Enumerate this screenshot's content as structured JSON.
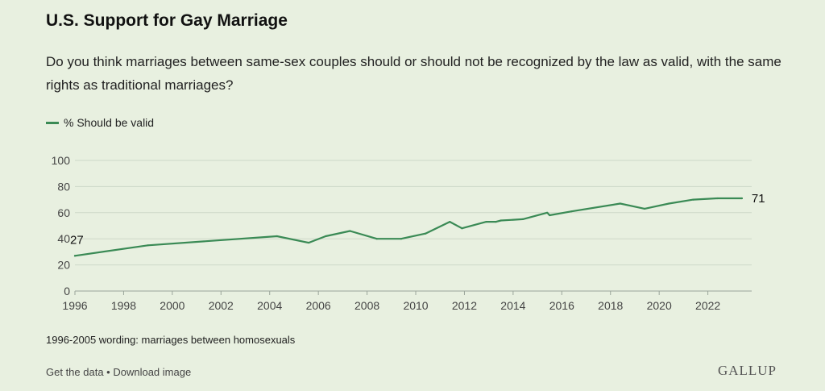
{
  "header": {
    "title": "U.S. Support for Gay Marriage",
    "subtitle": "Do you think marriages between same-sex couples should or should not be recognized by the law as valid, with the same rights as traditional marriages?"
  },
  "legend": {
    "label": "% Should be valid",
    "color": "#3a8a55"
  },
  "note": "1996-2005 wording: marriages between homosexuals",
  "footer": {
    "get_data": "Get the data",
    "separator": " • ",
    "download": "Download image",
    "brand": "GALLUP"
  },
  "chart_data": {
    "type": "line",
    "title": "U.S. Support for Gay Marriage",
    "xlabel": "",
    "ylabel": "",
    "xlim": [
      1996,
      2023.8
    ],
    "ylim": [
      0,
      100
    ],
    "yticks": [
      0,
      20,
      40,
      60,
      80,
      100
    ],
    "xticks": [
      1996,
      1998,
      2000,
      2002,
      2004,
      2006,
      2008,
      2010,
      2012,
      2014,
      2016,
      2018,
      2020,
      2022
    ],
    "grid": true,
    "legend_position": "top-left",
    "series": [
      {
        "name": "% Should be valid",
        "color": "#3a8a55",
        "x": [
          1996,
          1999,
          2004.3,
          2005.6,
          2006.3,
          2007.3,
          2008.4,
          2009.4,
          2010.4,
          2011.4,
          2011.9,
          2012.9,
          2013.3,
          2013.5,
          2014.4,
          2015.4,
          2015.5,
          2016.4,
          2018.4,
          2019.4,
          2020.4,
          2021.4,
          2022.4,
          2023.4
        ],
        "y": [
          27,
          35,
          42,
          37,
          42,
          46,
          40,
          40,
          44,
          53,
          48,
          53,
          53,
          54,
          55,
          60,
          58,
          61,
          67,
          63,
          67,
          70,
          71,
          71
        ]
      }
    ],
    "annotations": [
      {
        "x": 1996,
        "y": 27,
        "text": "27"
      },
      {
        "x": 2023.4,
        "y": 71,
        "text": "71"
      }
    ]
  }
}
